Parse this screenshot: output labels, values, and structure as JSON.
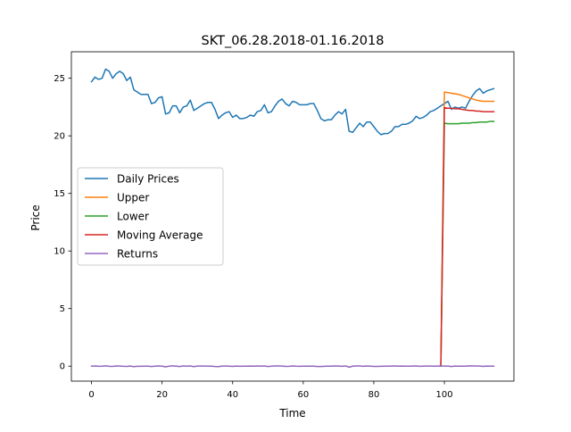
{
  "chart_data": {
    "type": "line",
    "title": "SKT_06.28.2018-01.16.2018",
    "xlabel": "Time",
    "ylabel": "Price",
    "xlim": [
      -5.7,
      119.7
    ],
    "ylim": [
      -1.3,
      27.3
    ],
    "xticks": [
      0,
      20,
      40,
      60,
      80,
      100
    ],
    "yticks": [
      0,
      5,
      10,
      15,
      20,
      25
    ],
    "grid": false,
    "legend_position": "center-left",
    "series": [
      {
        "name": "Daily Prices",
        "color": "#1f77b4",
        "x_start": 0,
        "values": [
          24.7,
          25.1,
          24.9,
          25.0,
          25.8,
          25.6,
          25.0,
          25.4,
          25.6,
          25.4,
          24.8,
          25.1,
          24.0,
          23.8,
          23.6,
          23.6,
          23.6,
          22.8,
          22.9,
          23.3,
          23.4,
          21.9,
          22.0,
          22.6,
          22.6,
          22.0,
          22.5,
          22.6,
          23.1,
          22.2,
          22.4,
          22.6,
          22.8,
          22.9,
          22.9,
          22.3,
          21.5,
          21.8,
          22.0,
          22.1,
          21.6,
          21.8,
          21.5,
          21.5,
          21.6,
          21.8,
          21.7,
          22.1,
          22.2,
          22.7,
          22.0,
          22.1,
          22.6,
          23.0,
          23.2,
          22.8,
          22.6,
          23.0,
          22.9,
          22.7,
          22.7,
          22.7,
          22.8,
          22.8,
          22.2,
          21.5,
          21.3,
          21.4,
          21.4,
          21.8,
          22.1,
          21.9,
          22.3,
          20.4,
          20.3,
          20.7,
          21.1,
          20.8,
          21.2,
          21.2,
          20.8,
          20.4,
          20.1,
          20.2,
          20.2,
          20.4,
          20.8,
          20.8,
          21.0,
          21.0,
          21.1,
          21.3,
          21.7,
          21.5,
          21.6,
          21.8,
          22.1,
          22.2,
          22.4,
          22.6,
          22.8,
          23.0,
          22.3,
          22.5,
          22.4,
          22.5,
          22.4,
          23.0,
          23.5,
          23.9,
          24.1,
          23.7,
          23.9,
          24.0,
          24.1
        ]
      },
      {
        "name": "Upper",
        "color": "#ff7f0e",
        "x_start": 99,
        "values": [
          0,
          23.8,
          23.75,
          23.7,
          23.65,
          23.6,
          23.5,
          23.4,
          23.3,
          23.2,
          23.1,
          23.05,
          23.0,
          23.0,
          23.0,
          23.0
        ]
      },
      {
        "name": "Lower",
        "color": "#2ca02c",
        "x_start": 99,
        "values": [
          0,
          21.1,
          21.05,
          21.05,
          21.05,
          21.05,
          21.1,
          21.1,
          21.1,
          21.15,
          21.15,
          21.2,
          21.2,
          21.2,
          21.25,
          21.25
        ]
      },
      {
        "name": "Moving Average",
        "color": "#d62728",
        "x_start": 99,
        "values": [
          0,
          22.45,
          22.4,
          22.4,
          22.35,
          22.35,
          22.3,
          22.25,
          22.2,
          22.2,
          22.15,
          22.15,
          22.1,
          22.1,
          22.1,
          22.1
        ]
      },
      {
        "name": "Returns",
        "color": "#9467bd",
        "x_start": 0,
        "values": [
          0.0,
          0.02,
          -0.01,
          0.0,
          0.03,
          -0.01,
          -0.02,
          0.02,
          0.01,
          -0.01,
          -0.02,
          0.01,
          -0.04,
          -0.01,
          -0.01,
          0.0,
          0.0,
          -0.03,
          0.0,
          0.02,
          0.0,
          -0.06,
          0.0,
          0.03,
          0.0,
          -0.03,
          0.02,
          0.0,
          0.02,
          -0.04,
          0.01,
          0.01,
          0.01,
          0.0,
          0.0,
          -0.03,
          -0.04,
          0.01,
          0.01,
          0.0,
          -0.02,
          0.01,
          -0.01,
          0.0,
          0.0,
          0.01,
          0.0,
          0.02,
          0.0,
          0.02,
          -0.03,
          0.0,
          0.02,
          0.02,
          0.01,
          -0.02,
          -0.01,
          0.02,
          0.0,
          -0.01,
          0.0,
          0.0,
          0.0,
          0.0,
          -0.03,
          -0.03,
          -0.01,
          0.0,
          0.0,
          0.02,
          0.01,
          -0.01,
          0.02,
          -0.09,
          0.0,
          0.02,
          0.02,
          -0.01,
          0.02,
          0.0,
          -0.02,
          -0.02,
          -0.01,
          0.0,
          0.0,
          0.01,
          0.02,
          0.0,
          0.01,
          0.0,
          0.0,
          0.01,
          0.02,
          -0.01,
          0.0,
          0.01,
          0.01,
          0.0,
          0.01,
          0.01,
          0.01,
          0.01,
          -0.03,
          0.01,
          0.0,
          0.0,
          0.0,
          0.03,
          0.02,
          0.02,
          0.01,
          -0.02,
          0.01,
          0.0,
          0.0
        ]
      }
    ]
  }
}
